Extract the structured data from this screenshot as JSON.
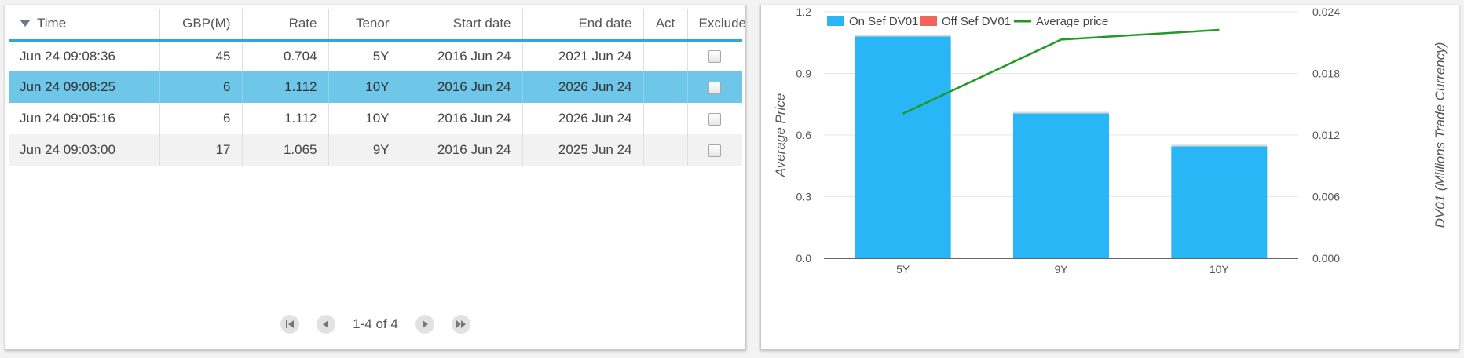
{
  "table": {
    "columns": [
      {
        "key": "time",
        "label": "Time",
        "align": "al",
        "sorted": true
      },
      {
        "key": "gbp",
        "label": "GBP(M)",
        "align": "ar"
      },
      {
        "key": "rate",
        "label": "Rate",
        "align": "ar"
      },
      {
        "key": "tenor",
        "label": "Tenor",
        "align": "ar"
      },
      {
        "key": "start",
        "label": "Start date",
        "align": "ar"
      },
      {
        "key": "end",
        "label": "End date",
        "align": "ar"
      },
      {
        "key": "act",
        "label": "Act",
        "align": "ac"
      },
      {
        "key": "exclude",
        "label": "Exclude",
        "align": "ac"
      }
    ],
    "rows": [
      {
        "time": "Jun 24 09:08:36",
        "gbp": "45",
        "rate": "0.704",
        "tenor": "5Y",
        "start": "2016 Jun 24",
        "end": "2021 Jun 24",
        "act": "",
        "exclude": false,
        "selected": false
      },
      {
        "time": "Jun 24 09:08:25",
        "gbp": "6",
        "rate": "1.112",
        "tenor": "10Y",
        "start": "2016 Jun 24",
        "end": "2026 Jun 24",
        "act": "",
        "exclude": false,
        "selected": true
      },
      {
        "time": "Jun 24 09:05:16",
        "gbp": "6",
        "rate": "1.112",
        "tenor": "10Y",
        "start": "2016 Jun 24",
        "end": "2026 Jun 24",
        "act": "",
        "exclude": false,
        "selected": false
      },
      {
        "time": "Jun 24 09:03:00",
        "gbp": "17",
        "rate": "1.065",
        "tenor": "9Y",
        "start": "2016 Jun 24",
        "end": "2025 Jun 24",
        "act": "",
        "exclude": false,
        "selected": false
      }
    ]
  },
  "pager": {
    "info": "1-4 of 4"
  },
  "chart_data": {
    "type": "bar",
    "categories": [
      "5Y",
      "9Y",
      "10Y"
    ],
    "series": [
      {
        "name": "On Sef DV01",
        "type": "bar",
        "axis": "right",
        "color": "#29b6f6",
        "values": [
          0.0216,
          0.0141,
          0.0109
        ]
      },
      {
        "name": "Off Sef DV01",
        "type": "bar",
        "axis": "right",
        "color": "#f0645a",
        "values": [
          0.0,
          0.0,
          0.0
        ]
      },
      {
        "name": "Average price",
        "type": "line",
        "axis": "left",
        "color": "#229922",
        "values": [
          0.704,
          1.065,
          1.112
        ]
      }
    ],
    "ylabel_left": "Average Price",
    "ylabel_right": "DV01 (Millions Trade Currency)",
    "ylim_left": [
      0,
      1.2
    ],
    "ylim_right": [
      0,
      0.024
    ],
    "yticks_left": [
      "0.0",
      "0.3",
      "0.6",
      "0.9",
      "1.2"
    ],
    "yticks_right": [
      "0.000",
      "0.006",
      "0.012",
      "0.018",
      "0.024"
    ],
    "legend_position": "top-left",
    "grid": true
  }
}
